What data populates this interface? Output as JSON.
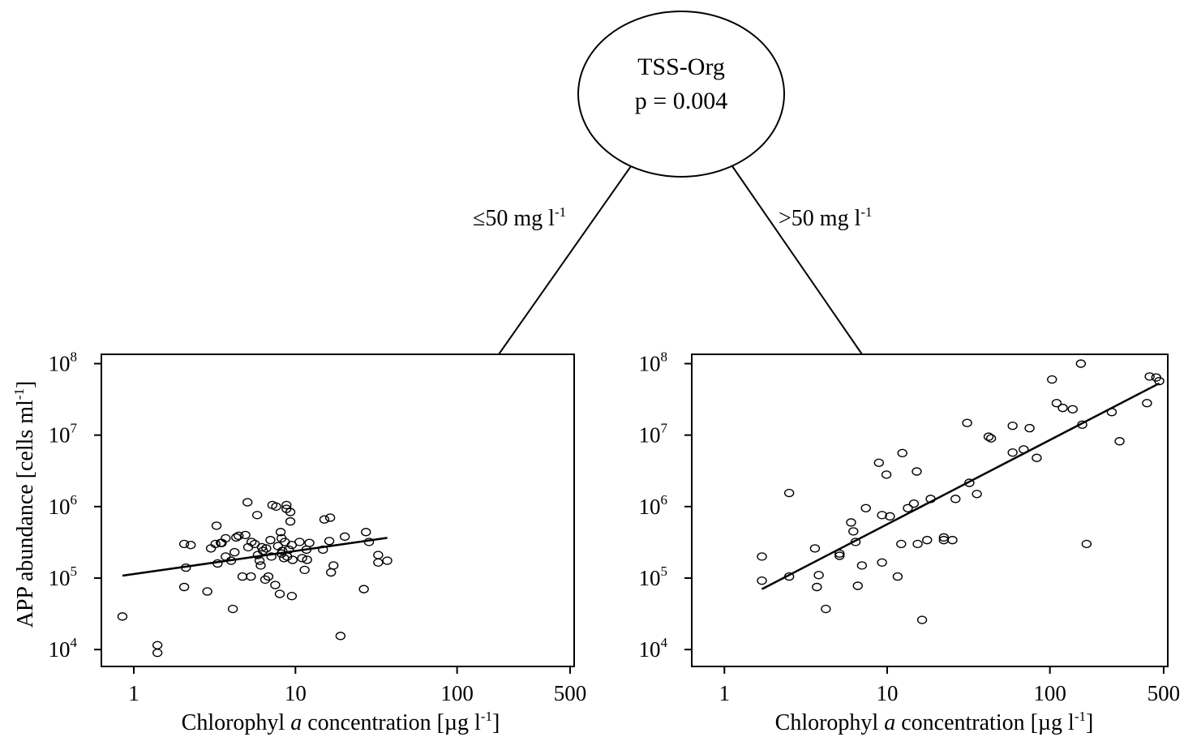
{
  "tree": {
    "node_label": "TSS-Org",
    "node_p": "p = 0.004",
    "left_branch": "≤50 mg l",
    "left_branch_sup": "-1",
    "right_branch": ">50 mg l",
    "right_branch_sup": "-1"
  },
  "ylabel_main": "APP abundance [cells ml",
  "ylabel_sup": "-1",
  "ylabel_end": "]",
  "y_ticks": [
    {
      "base": "10",
      "exp": "4",
      "value": 10000
    },
    {
      "base": "10",
      "exp": "5",
      "value": 100000
    },
    {
      "base": "10",
      "exp": "6",
      "value": 1000000
    },
    {
      "base": "10",
      "exp": "7",
      "value": 10000000
    },
    {
      "base": "10",
      "exp": "8",
      "value": 100000000
    }
  ],
  "x_ticks": [
    {
      "label": "1",
      "value": 1
    },
    {
      "label": "10",
      "value": 10
    },
    {
      "label": "100",
      "value": 100
    },
    {
      "label": "500",
      "value": 500
    }
  ],
  "xlabel": {
    "pre": "Chlorophyl ",
    "italic": "a",
    "post": " concentration [µg l",
    "sup": "-1",
    "end": "]"
  },
  "chart_data": [
    {
      "type": "scatter",
      "subset": "≤50 mg l-1",
      "xscale": "log",
      "yscale": "log",
      "xlim": [
        0.63,
        530
      ],
      "ylim": [
        5800,
        135000000
      ],
      "xlabel": "Chlorophyl a concentration [µg l-1]",
      "ylabel": "APP abundance [cells ml-1]",
      "points": [
        [
          0.85,
          29000
        ],
        [
          1.4,
          11500
        ],
        [
          1.4,
          9000
        ],
        [
          2.05,
          300000
        ],
        [
          2.1,
          140000
        ],
        [
          2.05,
          75000
        ],
        [
          2.25,
          290000
        ],
        [
          2.85,
          65000
        ],
        [
          3.0,
          260000
        ],
        [
          3.2,
          300000
        ],
        [
          3.25,
          540000
        ],
        [
          3.3,
          160000
        ],
        [
          3.45,
          310000
        ],
        [
          3.5,
          310000
        ],
        [
          3.7,
          360000
        ],
        [
          3.7,
          200000
        ],
        [
          4.0,
          175000
        ],
        [
          4.1,
          37000
        ],
        [
          4.2,
          230000
        ],
        [
          4.3,
          370000
        ],
        [
          4.45,
          390000
        ],
        [
          4.7,
          105000
        ],
        [
          4.9,
          400000
        ],
        [
          5.05,
          1150000
        ],
        [
          5.1,
          270000
        ],
        [
          5.3,
          105000
        ],
        [
          5.35,
          320000
        ],
        [
          5.6,
          300000
        ],
        [
          5.8,
          760000
        ],
        [
          5.85,
          210000
        ],
        [
          6.0,
          175000
        ],
        [
          6.1,
          150000
        ],
        [
          6.2,
          270000
        ],
        [
          6.3,
          240000
        ],
        [
          6.5,
          95000
        ],
        [
          6.6,
          260000
        ],
        [
          6.8,
          105000
        ],
        [
          7.0,
          340000
        ],
        [
          7.1,
          200000
        ],
        [
          7.2,
          1050000
        ],
        [
          7.5,
          80000
        ],
        [
          7.6,
          1000000
        ],
        [
          7.8,
          280000
        ],
        [
          8.0,
          60000
        ],
        [
          8.1,
          440000
        ],
        [
          8.2,
          360000
        ],
        [
          8.2,
          220000
        ],
        [
          8.3,
          240000
        ],
        [
          8.5,
          190000
        ],
        [
          8.6,
          320000
        ],
        [
          8.8,
          930000
        ],
        [
          8.8,
          1050000
        ],
        [
          8.9,
          200000
        ],
        [
          9.1,
          250000
        ],
        [
          9.3,
          620000
        ],
        [
          9.3,
          840000
        ],
        [
          9.5,
          56000
        ],
        [
          9.5,
          290000
        ],
        [
          9.6,
          180000
        ],
        [
          10.6,
          320000
        ],
        [
          11.0,
          190000
        ],
        [
          11.4,
          130000
        ],
        [
          11.7,
          250000
        ],
        [
          11.8,
          180000
        ],
        [
          12.2,
          310000
        ],
        [
          14.8,
          250000
        ],
        [
          15.1,
          660000
        ],
        [
          16.2,
          330000
        ],
        [
          16.4,
          700000
        ],
        [
          16.6,
          120000
        ],
        [
          17.2,
          150000
        ],
        [
          19.0,
          15500
        ],
        [
          20.2,
          380000
        ],
        [
          26.5,
          70000
        ],
        [
          27.3,
          440000
        ],
        [
          28.5,
          320000
        ],
        [
          32.5,
          210000
        ],
        [
          32.5,
          165000
        ],
        [
          37.0,
          175000
        ]
      ],
      "fit": {
        "x": [
          0.85,
          37
        ],
        "y": [
          108000,
          365000
        ]
      }
    },
    {
      "type": "scatter",
      "subset": ">50 mg l-1",
      "xscale": "log",
      "yscale": "log",
      "xlim": [
        0.63,
        530
      ],
      "ylim": [
        5800,
        135000000
      ],
      "xlabel": "Chlorophyl a concentration [µg l-1]",
      "ylabel": "APP abundance [cells ml-1]",
      "points": [
        [
          1.7,
          200000
        ],
        [
          1.7,
          92000
        ],
        [
          2.5,
          1550000
        ],
        [
          2.5,
          105000
        ],
        [
          3.6,
          260000
        ],
        [
          3.7,
          75000
        ],
        [
          3.8,
          110000
        ],
        [
          4.2,
          37000
        ],
        [
          5.1,
          220000
        ],
        [
          5.1,
          205000
        ],
        [
          6.0,
          600000
        ],
        [
          6.2,
          450000
        ],
        [
          6.4,
          320000
        ],
        [
          6.6,
          78000
        ],
        [
          7.0,
          150000
        ],
        [
          7.4,
          950000
        ],
        [
          8.9,
          4100000
        ],
        [
          9.3,
          760000
        ],
        [
          9.3,
          165000
        ],
        [
          9.9,
          2800000
        ],
        [
          10.4,
          730000
        ],
        [
          11.6,
          105000
        ],
        [
          12.2,
          300000
        ],
        [
          12.4,
          5600000
        ],
        [
          13.4,
          950000
        ],
        [
          14.6,
          1100000
        ],
        [
          15.2,
          3100000
        ],
        [
          15.4,
          300000
        ],
        [
          16.4,
          26000
        ],
        [
          17.6,
          340000
        ],
        [
          18.5,
          1280000
        ],
        [
          22.3,
          370000
        ],
        [
          22.3,
          340000
        ],
        [
          25.2,
          340000
        ],
        [
          26.3,
          1280000
        ],
        [
          31.0,
          14800000
        ],
        [
          32.0,
          2150000
        ],
        [
          35.6,
          1500000
        ],
        [
          42.0,
          9500000
        ],
        [
          43.5,
          9000000
        ],
        [
          59.0,
          13500000
        ],
        [
          59.0,
          5700000
        ],
        [
          69.0,
          6300000
        ],
        [
          75.0,
          12500000
        ],
        [
          83.0,
          4800000
        ],
        [
          103.0,
          60000000
        ],
        [
          110.0,
          28000000
        ],
        [
          120.0,
          24000000
        ],
        [
          138.0,
          23000000
        ],
        [
          155.0,
          100000000
        ],
        [
          158.0,
          14000000
        ],
        [
          168.0,
          300000
        ],
        [
          240.0,
          21000000
        ],
        [
          268.0,
          8200000
        ],
        [
          395.0,
          28000000
        ],
        [
          410.0,
          66000000
        ],
        [
          450.0,
          64000000
        ],
        [
          470.0,
          57000000
        ]
      ],
      "fit": {
        "x": [
          1.7,
          470
        ],
        "y": [
          70000,
          53000000
        ]
      }
    }
  ]
}
